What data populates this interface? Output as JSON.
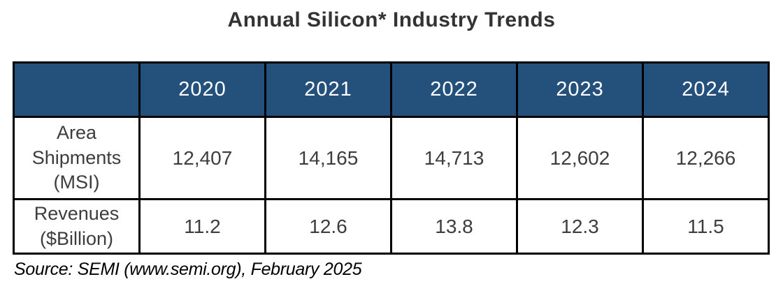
{
  "title": "Annual Silicon* Industry Trends",
  "source_note": "Source: SEMI (www.semi.org), February 2025",
  "colors": {
    "header_background": "#24517c",
    "header_text": "#ffffff",
    "body_text": "#3d3d3d",
    "grid_border": "#000000",
    "corner_border": "#9e9e9c"
  },
  "chart_data": {
    "type": "table",
    "title": "Annual Silicon* Industry Trends",
    "columns": [
      "",
      "2020",
      "2021",
      "2022",
      "2023",
      "2024"
    ],
    "rows": [
      {
        "label": "Area Shipments (MSI)",
        "values": [
          "12,407",
          "14,165",
          "14,713",
          "12,602",
          "12,266"
        ]
      },
      {
        "label": "Revenues ($Billion)",
        "values": [
          "11.2",
          "12.6",
          "13.8",
          "12.3",
          "11.5"
        ]
      }
    ],
    "source": "Source: SEMI (www.semi.org), February 2025",
    "layout": {
      "header_style": "dark-blue band, white year labels",
      "grid": "black 3px borders, gray border on blank corner cell"
    }
  }
}
